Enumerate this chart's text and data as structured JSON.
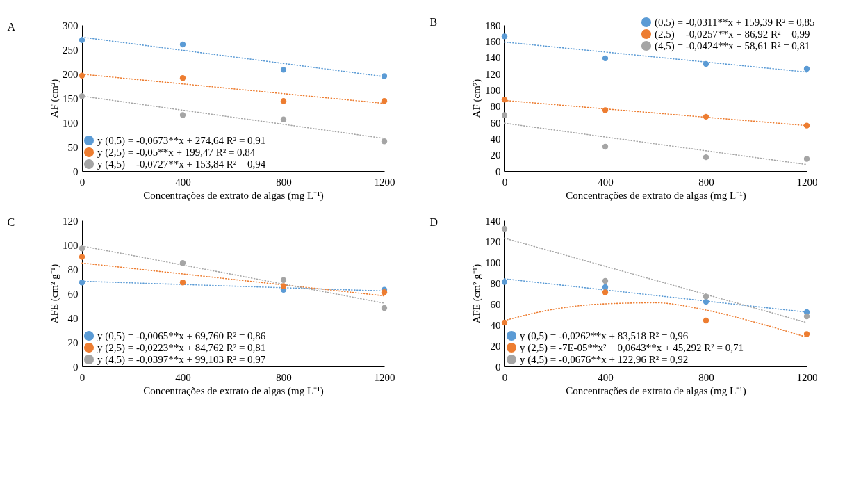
{
  "chart_data": [
    {
      "type": "scatter",
      "title": "A",
      "xlabel": "Concentrações de extrato de algas (mg L⁻¹)",
      "ylabel": "AF (cm²)",
      "x": [
        0,
        400,
        800,
        1200
      ],
      "xlim": [
        0,
        1200
      ],
      "xticks": [
        0,
        400,
        800,
        1200
      ],
      "ylim": [
        0,
        300
      ],
      "yticks": [
        0,
        50,
        100,
        150,
        200,
        250,
        300
      ],
      "grid": false,
      "legend": "bottom left",
      "marker": "circle",
      "series": [
        {
          "name": "y (0,5) = -0,0673**x + 274,64 R² = 0,91",
          "color": "#5b9bd5",
          "values": [
            269,
            260,
            208,
            195
          ]
        },
        {
          "name": "y (2,5) = -0,05**x + 199,47 R² = 0,84",
          "color": "#ed7d31",
          "values": [
            196,
            191,
            144,
            144
          ]
        },
        {
          "name": "y (4,5) = -0,0727**x + 153,84 R² = 0,94",
          "color": "#a5a5a5",
          "values": [
            154,
            115,
            106,
            61
          ]
        },
        {
          "type": "line",
          "line_style": "dotted",
          "marker": "none",
          "color": "#5b9bd5",
          "x": [
            0,
            1200
          ],
          "values": [
            275,
            194
          ]
        },
        {
          "type": "line",
          "line_style": "dotted",
          "marker": "none",
          "color": "#ed7d31",
          "x": [
            0,
            1200
          ],
          "values": [
            199,
            139
          ]
        },
        {
          "type": "line",
          "line_style": "dotted",
          "marker": "none",
          "color": "#a5a5a5",
          "x": [
            0,
            1200
          ],
          "values": [
            154,
            67
          ]
        }
      ]
    },
    {
      "type": "scatter",
      "title": "B",
      "xlabel": "Concentrações de extrato de algas (mg L⁻¹)",
      "ylabel": "AF (cm²)",
      "x": [
        0,
        400,
        800,
        1200
      ],
      "xlim": [
        0,
        1200
      ],
      "xticks": [
        0,
        400,
        800,
        1200
      ],
      "ylim": [
        0,
        180
      ],
      "yticks": [
        0,
        20,
        40,
        60,
        80,
        100,
        120,
        140,
        160,
        180
      ],
      "grid": false,
      "legend": "top right",
      "marker": "circle",
      "series": [
        {
          "name": "(0,5) = -0,0311**x + 159,39 R² = 0,85",
          "color": "#5b9bd5",
          "values": [
            166,
            139,
            132,
            126
          ]
        },
        {
          "name": "(2,5) = -0,0257**x + 86,92 R² = 0,99",
          "color": "#ed7d31",
          "values": [
            88,
            75,
            67,
            56
          ]
        },
        {
          "name": "(4,5) = -0,0424**x + 58,61 R² = 0,81",
          "color": "#a5a5a5",
          "values": [
            69,
            30,
            17,
            15
          ]
        },
        {
          "type": "line",
          "line_style": "dotted",
          "marker": "none",
          "color": "#5b9bd5",
          "x": [
            0,
            1200
          ],
          "values": [
            159,
            122
          ]
        },
        {
          "type": "line",
          "line_style": "dotted",
          "marker": "none",
          "color": "#ed7d31",
          "x": [
            0,
            1200
          ],
          "values": [
            87,
            56
          ]
        },
        {
          "type": "line",
          "line_style": "dotted",
          "marker": "none",
          "color": "#a5a5a5",
          "x": [
            0,
            1200
          ],
          "values": [
            59,
            8
          ]
        }
      ]
    },
    {
      "type": "scatter",
      "title": "C",
      "xlabel": "Concentrações de extrato de algas (mg L⁻¹)",
      "ylabel": "AFE (cm² g⁻¹)",
      "x": [
        0,
        400,
        800,
        1200
      ],
      "xlim": [
        0,
        1200
      ],
      "xticks": [
        0,
        400,
        800,
        1200
      ],
      "ylim": [
        0,
        120
      ],
      "yticks": [
        0,
        20,
        40,
        60,
        80,
        100,
        120
      ],
      "grid": false,
      "legend": "bottom left",
      "marker": "circle",
      "series": [
        {
          "name": "y (0,5) = -0,0065**x + 69,760 R² = 0,86",
          "color": "#5b9bd5",
          "values": [
            69,
            null,
            63,
            63
          ]
        },
        {
          "name": "y (2,5) = -0,0223**x + 84,762 R² = 0,81",
          "color": "#ed7d31",
          "values": [
            90,
            69,
            66,
            61
          ]
        },
        {
          "name": "y (4,5) = -0,0397**x + 99,103 R² = 0,97",
          "color": "#a5a5a5",
          "values": [
            97,
            85,
            71,
            48
          ]
        },
        {
          "type": "line",
          "line_style": "dotted",
          "marker": "none",
          "color": "#5b9bd5",
          "x": [
            0,
            1200
          ],
          "values": [
            70,
            62
          ]
        },
        {
          "type": "line",
          "line_style": "dotted",
          "marker": "none",
          "color": "#ed7d31",
          "x": [
            0,
            1200
          ],
          "values": [
            85,
            58
          ]
        },
        {
          "type": "line",
          "line_style": "dotted",
          "marker": "none",
          "color": "#a5a5a5",
          "x": [
            0,
            1200
          ],
          "values": [
            99,
            52
          ]
        }
      ]
    },
    {
      "type": "scatter",
      "title": "D",
      "xlabel": "Concentrações de extrato de algas (mg L⁻¹)",
      "ylabel": "AFE (cm² g⁻¹)",
      "x": [
        0,
        400,
        800,
        1200
      ],
      "xlim": [
        0,
        1200
      ],
      "xticks": [
        0,
        400,
        800,
        1200
      ],
      "ylim": [
        0,
        140
      ],
      "yticks": [
        0,
        20,
        40,
        60,
        80,
        100,
        120,
        140
      ],
      "grid": false,
      "legend": "bottom left",
      "marker": "circle",
      "series": [
        {
          "name": "y (0,5) = -0,0262**x + 83,518 R² = 0,96",
          "color": "#5b9bd5",
          "values": [
            81,
            76,
            62,
            52
          ]
        },
        {
          "name": "y (2,5) = -7E-05**x² + 0,0643**x + 45,292 R² = 0,71",
          "color": "#ed7d31",
          "values": [
            42,
            71,
            44,
            31
          ]
        },
        {
          "name": "y (4,5) = -0,0676**x + 122,96 R² = 0,92",
          "color": "#a5a5a5",
          "values": [
            132,
            82,
            67,
            48
          ]
        },
        {
          "type": "line",
          "line_style": "dotted",
          "marker": "none",
          "color": "#5b9bd5",
          "x": [
            0,
            1200
          ],
          "values": [
            84,
            52
          ]
        },
        {
          "type": "line",
          "line_style": "dotted",
          "marker": "none",
          "color": "#ed7d31",
          "x": [
            0,
            200,
            400,
            600,
            800,
            1000,
            1200
          ],
          "values": [
            44,
            55,
            60,
            61,
            54,
            42,
            28
          ]
        },
        {
          "type": "line",
          "line_style": "dotted",
          "marker": "none",
          "color": "#a5a5a5",
          "x": [
            0,
            1200
          ],
          "values": [
            123,
            42
          ]
        }
      ]
    }
  ]
}
